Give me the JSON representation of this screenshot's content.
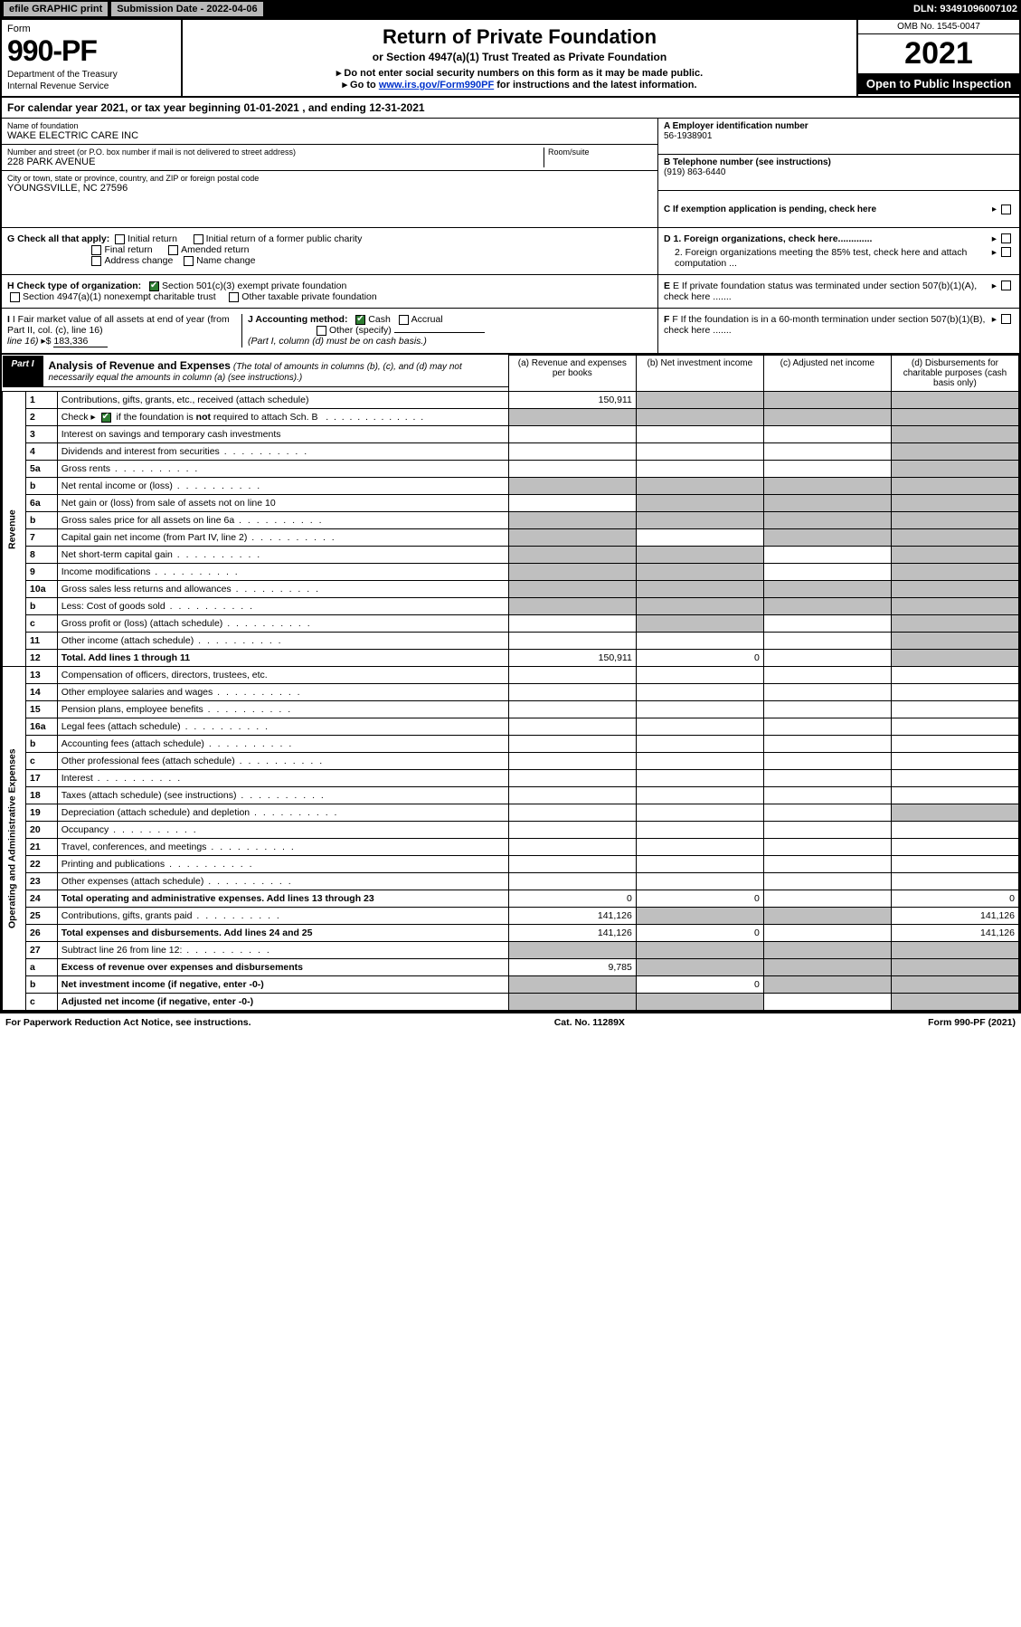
{
  "topbar": {
    "efile": "efile GRAPHIC print",
    "subdate_label": "Submission Date - 2022-04-06",
    "dln": "DLN: 93491096007102"
  },
  "header": {
    "form_word": "Form",
    "form_no": "990-PF",
    "dept": "Department of the Treasury",
    "irs": "Internal Revenue Service",
    "title": "Return of Private Foundation",
    "subtitle": "or Section 4947(a)(1) Trust Treated as Private Foundation",
    "note1": "▸ Do not enter social security numbers on this form as it may be made public.",
    "note2_pre": "▸ Go to ",
    "note2_link": "www.irs.gov/Form990PF",
    "note2_post": " for instructions and the latest information.",
    "omb": "OMB No. 1545-0047",
    "year": "2021",
    "open": "Open to Public Inspection"
  },
  "calyear": {
    "text_pre": "For calendar year 2021, or tax year beginning ",
    "begin": "01-01-2021",
    "mid": " , and ending ",
    "end": "12-31-2021"
  },
  "identity": {
    "name_lbl": "Name of foundation",
    "name": "WAKE ELECTRIC CARE INC",
    "addr_lbl": "Number and street (or P.O. box number if mail is not delivered to street address)",
    "addr": "228 PARK AVENUE",
    "room_lbl": "Room/suite",
    "city_lbl": "City or town, state or province, country, and ZIP or foreign postal code",
    "city": "YOUNGSVILLE, NC  27596",
    "a_lbl": "A Employer identification number",
    "a_val": "56-1938901",
    "b_lbl": "B Telephone number (see instructions)",
    "b_val": "(919) 863-6440",
    "c_lbl": "C  If exemption application is pending, check here"
  },
  "checks": {
    "g_lbl": "G Check all that apply:",
    "g_initial": "Initial return",
    "g_initial_former": "Initial return of a former public charity",
    "g_final": "Final return",
    "g_amended": "Amended return",
    "g_addr": "Address change",
    "g_name": "Name change",
    "h_lbl": "H Check type of organization:",
    "h_501c3": "Section 501(c)(3) exempt private foundation",
    "h_4947": "Section 4947(a)(1) nonexempt charitable trust",
    "h_other": "Other taxable private foundation",
    "i_lbl": "I Fair market value of all assets at end of year (from Part II, col. (c), line 16)",
    "i_val": "183,336",
    "j_lbl": "J Accounting method:",
    "j_cash": "Cash",
    "j_accrual": "Accrual",
    "j_other": "Other (specify)",
    "j_note": "(Part I, column (d) must be on cash basis.)",
    "d1": "D 1. Foreign organizations, check here.............",
    "d2": "2. Foreign organizations meeting the 85% test, check here and attach computation ...",
    "e": "E  If private foundation status was terminated under section 507(b)(1)(A), check here .......",
    "f": "F  If the foundation is in a 60-month termination under section 507(b)(1)(B), check here ......."
  },
  "part1": {
    "label": "Part I",
    "title": "Analysis of Revenue and Expenses",
    "note": "(The total of amounts in columns (b), (c), and (d) may not necessarily equal the amounts in column (a) (see instructions).)",
    "col_a": "(a) Revenue and expenses per books",
    "col_b": "(b) Net investment income",
    "col_c": "(c) Adjusted net income",
    "col_d": "(d) Disbursements for charitable purposes (cash basis only)"
  },
  "sides": {
    "revenue": "Revenue",
    "expenses": "Operating and Administrative Expenses"
  },
  "rows": [
    {
      "n": "1",
      "d": "Contributions, gifts, grants, etc., received (attach schedule)",
      "a": "150,911",
      "b": "shade",
      "c": "shade",
      "dd": "shade"
    },
    {
      "n": "2",
      "d": "Check ▸ ☑ if the foundation is not required to attach Sch. B",
      "a": "shade",
      "b": "shade",
      "c": "shade",
      "dd": "shade",
      "bold_not": true
    },
    {
      "n": "3",
      "d": "Interest on savings and temporary cash investments",
      "a": "",
      "b": "",
      "c": "",
      "dd": "shade"
    },
    {
      "n": "4",
      "d": "Dividends and interest from securities",
      "a": "",
      "b": "",
      "c": "",
      "dd": "shade"
    },
    {
      "n": "5a",
      "d": "Gross rents",
      "a": "",
      "b": "",
      "c": "",
      "dd": "shade"
    },
    {
      "n": "b",
      "d": "Net rental income or (loss)",
      "a": "shade",
      "b": "shade",
      "c": "shade",
      "dd": "shade"
    },
    {
      "n": "6a",
      "d": "Net gain or (loss) from sale of assets not on line 10",
      "a": "",
      "b": "shade",
      "c": "shade",
      "dd": "shade"
    },
    {
      "n": "b",
      "d": "Gross sales price for all assets on line 6a",
      "a": "shade",
      "b": "shade",
      "c": "shade",
      "dd": "shade"
    },
    {
      "n": "7",
      "d": "Capital gain net income (from Part IV, line 2)",
      "a": "shade",
      "b": "",
      "c": "shade",
      "dd": "shade"
    },
    {
      "n": "8",
      "d": "Net short-term capital gain",
      "a": "shade",
      "b": "shade",
      "c": "",
      "dd": "shade"
    },
    {
      "n": "9",
      "d": "Income modifications",
      "a": "shade",
      "b": "shade",
      "c": "",
      "dd": "shade"
    },
    {
      "n": "10a",
      "d": "Gross sales less returns and allowances",
      "a": "shade",
      "b": "shade",
      "c": "shade",
      "dd": "shade"
    },
    {
      "n": "b",
      "d": "Less: Cost of goods sold",
      "a": "shade",
      "b": "shade",
      "c": "shade",
      "dd": "shade"
    },
    {
      "n": "c",
      "d": "Gross profit or (loss) (attach schedule)",
      "a": "",
      "b": "shade",
      "c": "",
      "dd": "shade"
    },
    {
      "n": "11",
      "d": "Other income (attach schedule)",
      "a": "",
      "b": "",
      "c": "",
      "dd": "shade"
    },
    {
      "n": "12",
      "d": "Total. Add lines 1 through 11",
      "a": "150,911",
      "b": "0",
      "c": "",
      "dd": "shade",
      "bold": true
    },
    {
      "n": "13",
      "d": "Compensation of officers, directors, trustees, etc.",
      "a": "",
      "b": "",
      "c": "",
      "dd": ""
    },
    {
      "n": "14",
      "d": "Other employee salaries and wages",
      "a": "",
      "b": "",
      "c": "",
      "dd": ""
    },
    {
      "n": "15",
      "d": "Pension plans, employee benefits",
      "a": "",
      "b": "",
      "c": "",
      "dd": ""
    },
    {
      "n": "16a",
      "d": "Legal fees (attach schedule)",
      "a": "",
      "b": "",
      "c": "",
      "dd": ""
    },
    {
      "n": "b",
      "d": "Accounting fees (attach schedule)",
      "a": "",
      "b": "",
      "c": "",
      "dd": ""
    },
    {
      "n": "c",
      "d": "Other professional fees (attach schedule)",
      "a": "",
      "b": "",
      "c": "",
      "dd": ""
    },
    {
      "n": "17",
      "d": "Interest",
      "a": "",
      "b": "",
      "c": "",
      "dd": ""
    },
    {
      "n": "18",
      "d": "Taxes (attach schedule) (see instructions)",
      "a": "",
      "b": "",
      "c": "",
      "dd": ""
    },
    {
      "n": "19",
      "d": "Depreciation (attach schedule) and depletion",
      "a": "",
      "b": "",
      "c": "",
      "dd": "shade"
    },
    {
      "n": "20",
      "d": "Occupancy",
      "a": "",
      "b": "",
      "c": "",
      "dd": ""
    },
    {
      "n": "21",
      "d": "Travel, conferences, and meetings",
      "a": "",
      "b": "",
      "c": "",
      "dd": ""
    },
    {
      "n": "22",
      "d": "Printing and publications",
      "a": "",
      "b": "",
      "c": "",
      "dd": ""
    },
    {
      "n": "23",
      "d": "Other expenses (attach schedule)",
      "a": "",
      "b": "",
      "c": "",
      "dd": ""
    },
    {
      "n": "24",
      "d": "Total operating and administrative expenses. Add lines 13 through 23",
      "a": "0",
      "b": "0",
      "c": "",
      "dd": "0",
      "bold": true
    },
    {
      "n": "25",
      "d": "Contributions, gifts, grants paid",
      "a": "141,126",
      "b": "shade",
      "c": "shade",
      "dd": "141,126"
    },
    {
      "n": "26",
      "d": "Total expenses and disbursements. Add lines 24 and 25",
      "a": "141,126",
      "b": "0",
      "c": "",
      "dd": "141,126",
      "bold": true
    },
    {
      "n": "27",
      "d": "Subtract line 26 from line 12:",
      "a": "shade",
      "b": "shade",
      "c": "shade",
      "dd": "shade"
    },
    {
      "n": "a",
      "d": "Excess of revenue over expenses and disbursements",
      "a": "9,785",
      "b": "shade",
      "c": "shade",
      "dd": "shade",
      "bold": true
    },
    {
      "n": "b",
      "d": "Net investment income (if negative, enter -0-)",
      "a": "shade",
      "b": "0",
      "c": "shade",
      "dd": "shade",
      "bold": true
    },
    {
      "n": "c",
      "d": "Adjusted net income (if negative, enter -0-)",
      "a": "shade",
      "b": "shade",
      "c": "",
      "dd": "shade",
      "bold": true
    }
  ],
  "footer": {
    "left": "For Paperwork Reduction Act Notice, see instructions.",
    "mid": "Cat. No. 11289X",
    "right": "Form 990-PF (2021)"
  },
  "colors": {
    "shade": "#bfbfbf",
    "link": "#0033cc",
    "check_on": "#2e7d32"
  }
}
